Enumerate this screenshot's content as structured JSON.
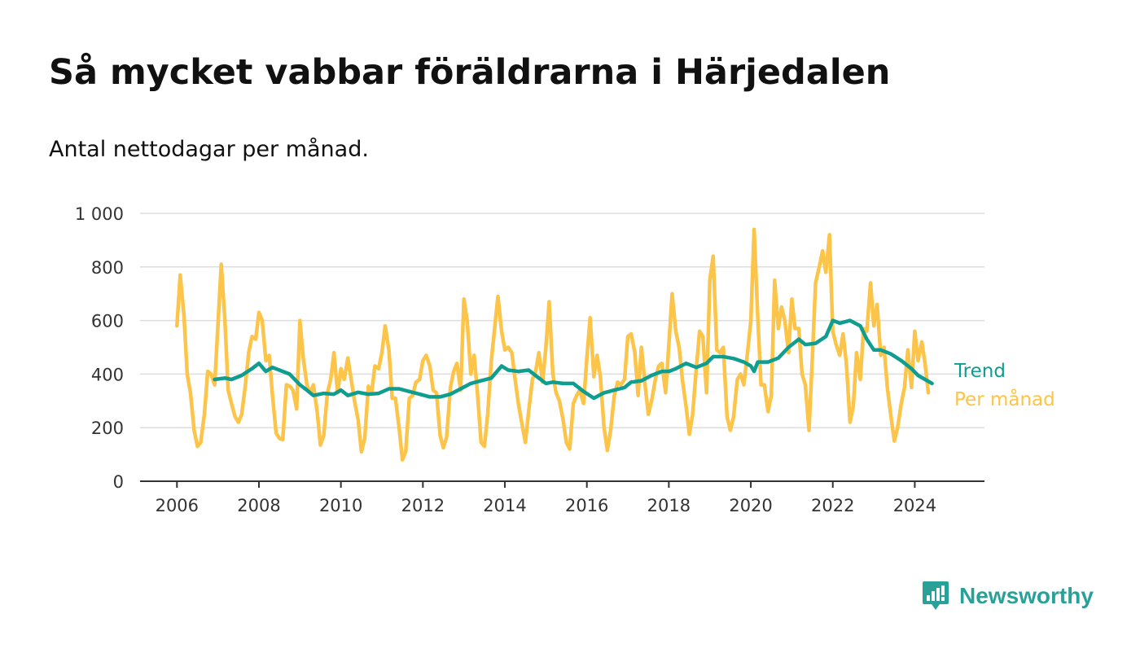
{
  "title": "Så mycket vabbar föräldrarna i Härjedalen",
  "subtitle": "Antal nettodagar per månad.",
  "brand": "Newsworthy",
  "colors": {
    "trend": "#0f9d8f",
    "monthly": "#fcc449",
    "grid": "#dddddd",
    "axis": "#333333"
  },
  "chart_data": {
    "type": "line",
    "title": "Så mycket vabbar föräldrarna i Härjedalen",
    "subtitle": "Antal nettodagar per månad.",
    "xlabel": "",
    "ylabel": "",
    "xlim": [
      2005.1,
      2025.7
    ],
    "ylim": [
      0,
      1000
    ],
    "x_ticks": [
      2006,
      2008,
      2010,
      2012,
      2014,
      2016,
      2018,
      2020,
      2022,
      2024
    ],
    "x_tick_labels": [
      "2006",
      "2008",
      "2010",
      "2012",
      "2014",
      "2016",
      "2018",
      "2020",
      "2022",
      "2024"
    ],
    "y_ticks": [
      0,
      200,
      400,
      600,
      800,
      1000
    ],
    "y_tick_labels": [
      "0",
      "200",
      "400",
      "600",
      "800",
      "1 000"
    ],
    "grid": true,
    "series": [
      {
        "name": "Per månad",
        "points": [
          [
            2006.0,
            580
          ],
          [
            2006.08,
            770
          ],
          [
            2006.17,
            620
          ],
          [
            2006.25,
            400
          ],
          [
            2006.33,
            330
          ],
          [
            2006.42,
            190
          ],
          [
            2006.5,
            130
          ],
          [
            2006.58,
            145
          ],
          [
            2006.67,
            250
          ],
          [
            2006.75,
            410
          ],
          [
            2006.83,
            400
          ],
          [
            2006.92,
            360
          ],
          [
            2007.0,
            580
          ],
          [
            2007.08,
            810
          ],
          [
            2007.17,
            600
          ],
          [
            2007.25,
            340
          ],
          [
            2007.33,
            290
          ],
          [
            2007.42,
            240
          ],
          [
            2007.5,
            220
          ],
          [
            2007.58,
            250
          ],
          [
            2007.67,
            360
          ],
          [
            2007.75,
            480
          ],
          [
            2007.83,
            540
          ],
          [
            2007.92,
            530
          ],
          [
            2008.0,
            630
          ],
          [
            2008.08,
            600
          ],
          [
            2008.17,
            450
          ],
          [
            2008.25,
            470
          ],
          [
            2008.33,
            320
          ],
          [
            2008.42,
            180
          ],
          [
            2008.5,
            160
          ],
          [
            2008.58,
            155
          ],
          [
            2008.67,
            360
          ],
          [
            2008.75,
            355
          ],
          [
            2008.83,
            340
          ],
          [
            2008.92,
            270
          ],
          [
            2009.0,
            600
          ],
          [
            2009.08,
            460
          ],
          [
            2009.17,
            360
          ],
          [
            2009.25,
            330
          ],
          [
            2009.33,
            360
          ],
          [
            2009.42,
            260
          ],
          [
            2009.5,
            135
          ],
          [
            2009.58,
            170
          ],
          [
            2009.67,
            330
          ],
          [
            2009.75,
            380
          ],
          [
            2009.83,
            480
          ],
          [
            2009.92,
            330
          ],
          [
            2010.0,
            420
          ],
          [
            2010.08,
            380
          ],
          [
            2010.17,
            460
          ],
          [
            2010.25,
            380
          ],
          [
            2010.33,
            300
          ],
          [
            2010.42,
            230
          ],
          [
            2010.5,
            110
          ],
          [
            2010.58,
            160
          ],
          [
            2010.67,
            355
          ],
          [
            2010.75,
            330
          ],
          [
            2010.83,
            430
          ],
          [
            2010.92,
            420
          ],
          [
            2011.0,
            480
          ],
          [
            2011.08,
            580
          ],
          [
            2011.17,
            490
          ],
          [
            2011.25,
            310
          ],
          [
            2011.33,
            310
          ],
          [
            2011.42,
            200
          ],
          [
            2011.5,
            80
          ],
          [
            2011.58,
            110
          ],
          [
            2011.67,
            310
          ],
          [
            2011.75,
            320
          ],
          [
            2011.83,
            370
          ],
          [
            2011.92,
            380
          ],
          [
            2012.0,
            450
          ],
          [
            2012.08,
            470
          ],
          [
            2012.17,
            430
          ],
          [
            2012.25,
            340
          ],
          [
            2012.33,
            330
          ],
          [
            2012.42,
            170
          ],
          [
            2012.5,
            125
          ],
          [
            2012.58,
            165
          ],
          [
            2012.67,
            350
          ],
          [
            2012.75,
            410
          ],
          [
            2012.83,
            440
          ],
          [
            2012.92,
            340
          ],
          [
            2013.0,
            680
          ],
          [
            2013.08,
            600
          ],
          [
            2013.17,
            400
          ],
          [
            2013.25,
            470
          ],
          [
            2013.33,
            330
          ],
          [
            2013.42,
            145
          ],
          [
            2013.5,
            130
          ],
          [
            2013.58,
            250
          ],
          [
            2013.67,
            450
          ],
          [
            2013.75,
            570
          ],
          [
            2013.83,
            690
          ],
          [
            2013.92,
            560
          ],
          [
            2014.0,
            490
          ],
          [
            2014.08,
            500
          ],
          [
            2014.17,
            480
          ],
          [
            2014.25,
            380
          ],
          [
            2014.33,
            290
          ],
          [
            2014.42,
            210
          ],
          [
            2014.5,
            145
          ],
          [
            2014.58,
            260
          ],
          [
            2014.67,
            380
          ],
          [
            2014.75,
            410
          ],
          [
            2014.83,
            480
          ],
          [
            2014.92,
            370
          ],
          [
            2015.0,
            500
          ],
          [
            2015.08,
            670
          ],
          [
            2015.17,
            400
          ],
          [
            2015.25,
            330
          ],
          [
            2015.33,
            300
          ],
          [
            2015.42,
            230
          ],
          [
            2015.5,
            145
          ],
          [
            2015.58,
            120
          ],
          [
            2015.67,
            290
          ],
          [
            2015.75,
            320
          ],
          [
            2015.83,
            340
          ],
          [
            2015.92,
            290
          ],
          [
            2016.0,
            460
          ],
          [
            2016.08,
            610
          ],
          [
            2016.17,
            390
          ],
          [
            2016.25,
            470
          ],
          [
            2016.33,
            390
          ],
          [
            2016.42,
            200
          ],
          [
            2016.5,
            115
          ],
          [
            2016.58,
            190
          ],
          [
            2016.67,
            320
          ],
          [
            2016.75,
            370
          ],
          [
            2016.83,
            360
          ],
          [
            2016.92,
            380
          ],
          [
            2017.0,
            540
          ],
          [
            2017.08,
            550
          ],
          [
            2017.17,
            480
          ],
          [
            2017.25,
            320
          ],
          [
            2017.33,
            500
          ],
          [
            2017.42,
            360
          ],
          [
            2017.5,
            250
          ],
          [
            2017.58,
            300
          ],
          [
            2017.67,
            380
          ],
          [
            2017.75,
            430
          ],
          [
            2017.83,
            440
          ],
          [
            2017.92,
            330
          ],
          [
            2018.0,
            510
          ],
          [
            2018.08,
            700
          ],
          [
            2018.17,
            560
          ],
          [
            2018.25,
            500
          ],
          [
            2018.33,
            380
          ],
          [
            2018.42,
            280
          ],
          [
            2018.5,
            175
          ],
          [
            2018.58,
            250
          ],
          [
            2018.67,
            420
          ],
          [
            2018.75,
            560
          ],
          [
            2018.83,
            540
          ],
          [
            2018.92,
            330
          ],
          [
            2019.0,
            750
          ],
          [
            2019.08,
            840
          ],
          [
            2019.17,
            490
          ],
          [
            2019.25,
            480
          ],
          [
            2019.33,
            500
          ],
          [
            2019.42,
            240
          ],
          [
            2019.5,
            190
          ],
          [
            2019.58,
            240
          ],
          [
            2019.67,
            380
          ],
          [
            2019.75,
            400
          ],
          [
            2019.83,
            360
          ],
          [
            2019.92,
            480
          ],
          [
            2020.0,
            600
          ],
          [
            2020.08,
            940
          ],
          [
            2020.17,
            610
          ],
          [
            2020.25,
            360
          ],
          [
            2020.33,
            360
          ],
          [
            2020.42,
            260
          ],
          [
            2020.5,
            320
          ],
          [
            2020.58,
            750
          ],
          [
            2020.67,
            570
          ],
          [
            2020.75,
            650
          ],
          [
            2020.83,
            600
          ],
          [
            2020.92,
            480
          ],
          [
            2021.0,
            680
          ],
          [
            2021.08,
            570
          ],
          [
            2021.17,
            570
          ],
          [
            2021.25,
            400
          ],
          [
            2021.33,
            360
          ],
          [
            2021.42,
            190
          ],
          [
            2021.5,
            460
          ],
          [
            2021.58,
            740
          ],
          [
            2021.67,
            800
          ],
          [
            2021.75,
            860
          ],
          [
            2021.83,
            780
          ],
          [
            2021.92,
            920
          ],
          [
            2022.0,
            560
          ],
          [
            2022.08,
            510
          ],
          [
            2022.17,
            470
          ],
          [
            2022.25,
            550
          ],
          [
            2022.33,
            440
          ],
          [
            2022.42,
            220
          ],
          [
            2022.5,
            280
          ],
          [
            2022.58,
            480
          ],
          [
            2022.67,
            380
          ],
          [
            2022.75,
            570
          ],
          [
            2022.83,
            560
          ],
          [
            2022.92,
            740
          ],
          [
            2023.0,
            580
          ],
          [
            2023.08,
            660
          ],
          [
            2023.17,
            470
          ],
          [
            2023.25,
            500
          ],
          [
            2023.33,
            350
          ],
          [
            2023.42,
            240
          ],
          [
            2023.5,
            150
          ],
          [
            2023.58,
            200
          ],
          [
            2023.67,
            290
          ],
          [
            2023.75,
            350
          ],
          [
            2023.83,
            490
          ],
          [
            2023.92,
            350
          ],
          [
            2024.0,
            560
          ],
          [
            2024.08,
            450
          ],
          [
            2024.17,
            520
          ],
          [
            2024.25,
            440
          ],
          [
            2024.33,
            330
          ]
        ]
      },
      {
        "name": "Trend",
        "points": [
          [
            2006.92,
            380
          ],
          [
            2007.17,
            385
          ],
          [
            2007.33,
            380
          ],
          [
            2007.58,
            395
          ],
          [
            2007.83,
            420
          ],
          [
            2008.0,
            440
          ],
          [
            2008.17,
            410
          ],
          [
            2008.33,
            425
          ],
          [
            2008.58,
            410
          ],
          [
            2008.75,
            400
          ],
          [
            2009.0,
            360
          ],
          [
            2009.17,
            340
          ],
          [
            2009.33,
            320
          ],
          [
            2009.58,
            328
          ],
          [
            2009.83,
            325
          ],
          [
            2010.0,
            340
          ],
          [
            2010.17,
            320
          ],
          [
            2010.42,
            332
          ],
          [
            2010.67,
            325
          ],
          [
            2010.92,
            328
          ],
          [
            2011.17,
            345
          ],
          [
            2011.42,
            345
          ],
          [
            2011.67,
            335
          ],
          [
            2011.92,
            325
          ],
          [
            2012.17,
            315
          ],
          [
            2012.42,
            315
          ],
          [
            2012.67,
            325
          ],
          [
            2012.92,
            345
          ],
          [
            2013.17,
            365
          ],
          [
            2013.42,
            375
          ],
          [
            2013.67,
            385
          ],
          [
            2013.92,
            430
          ],
          [
            2014.08,
            415
          ],
          [
            2014.33,
            410
          ],
          [
            2014.58,
            415
          ],
          [
            2014.83,
            385
          ],
          [
            2015.0,
            365
          ],
          [
            2015.17,
            370
          ],
          [
            2015.42,
            365
          ],
          [
            2015.67,
            365
          ],
          [
            2015.92,
            335
          ],
          [
            2016.17,
            310
          ],
          [
            2016.42,
            330
          ],
          [
            2016.67,
            340
          ],
          [
            2016.92,
            350
          ],
          [
            2017.08,
            370
          ],
          [
            2017.33,
            375
          ],
          [
            2017.58,
            395
          ],
          [
            2017.83,
            410
          ],
          [
            2018.0,
            410
          ],
          [
            2018.17,
            420
          ],
          [
            2018.42,
            440
          ],
          [
            2018.67,
            425
          ],
          [
            2018.92,
            440
          ],
          [
            2019.08,
            465
          ],
          [
            2019.33,
            465
          ],
          [
            2019.58,
            458
          ],
          [
            2019.83,
            445
          ],
          [
            2020.0,
            430
          ],
          [
            2020.08,
            410
          ],
          [
            2020.17,
            445
          ],
          [
            2020.42,
            445
          ],
          [
            2020.67,
            460
          ],
          [
            2020.92,
            500
          ],
          [
            2021.17,
            530
          ],
          [
            2021.33,
            510
          ],
          [
            2021.58,
            515
          ],
          [
            2021.83,
            540
          ],
          [
            2022.0,
            600
          ],
          [
            2022.17,
            590
          ],
          [
            2022.42,
            600
          ],
          [
            2022.67,
            580
          ],
          [
            2022.83,
            530
          ],
          [
            2023.0,
            490
          ],
          [
            2023.17,
            490
          ],
          [
            2023.42,
            475
          ],
          [
            2023.67,
            450
          ],
          [
            2023.92,
            420
          ],
          [
            2024.08,
            395
          ],
          [
            2024.25,
            380
          ],
          [
            2024.42,
            365
          ]
        ]
      }
    ],
    "legend": [
      "Trend",
      "Per månad"
    ],
    "legend_position": "right, at line ends"
  }
}
